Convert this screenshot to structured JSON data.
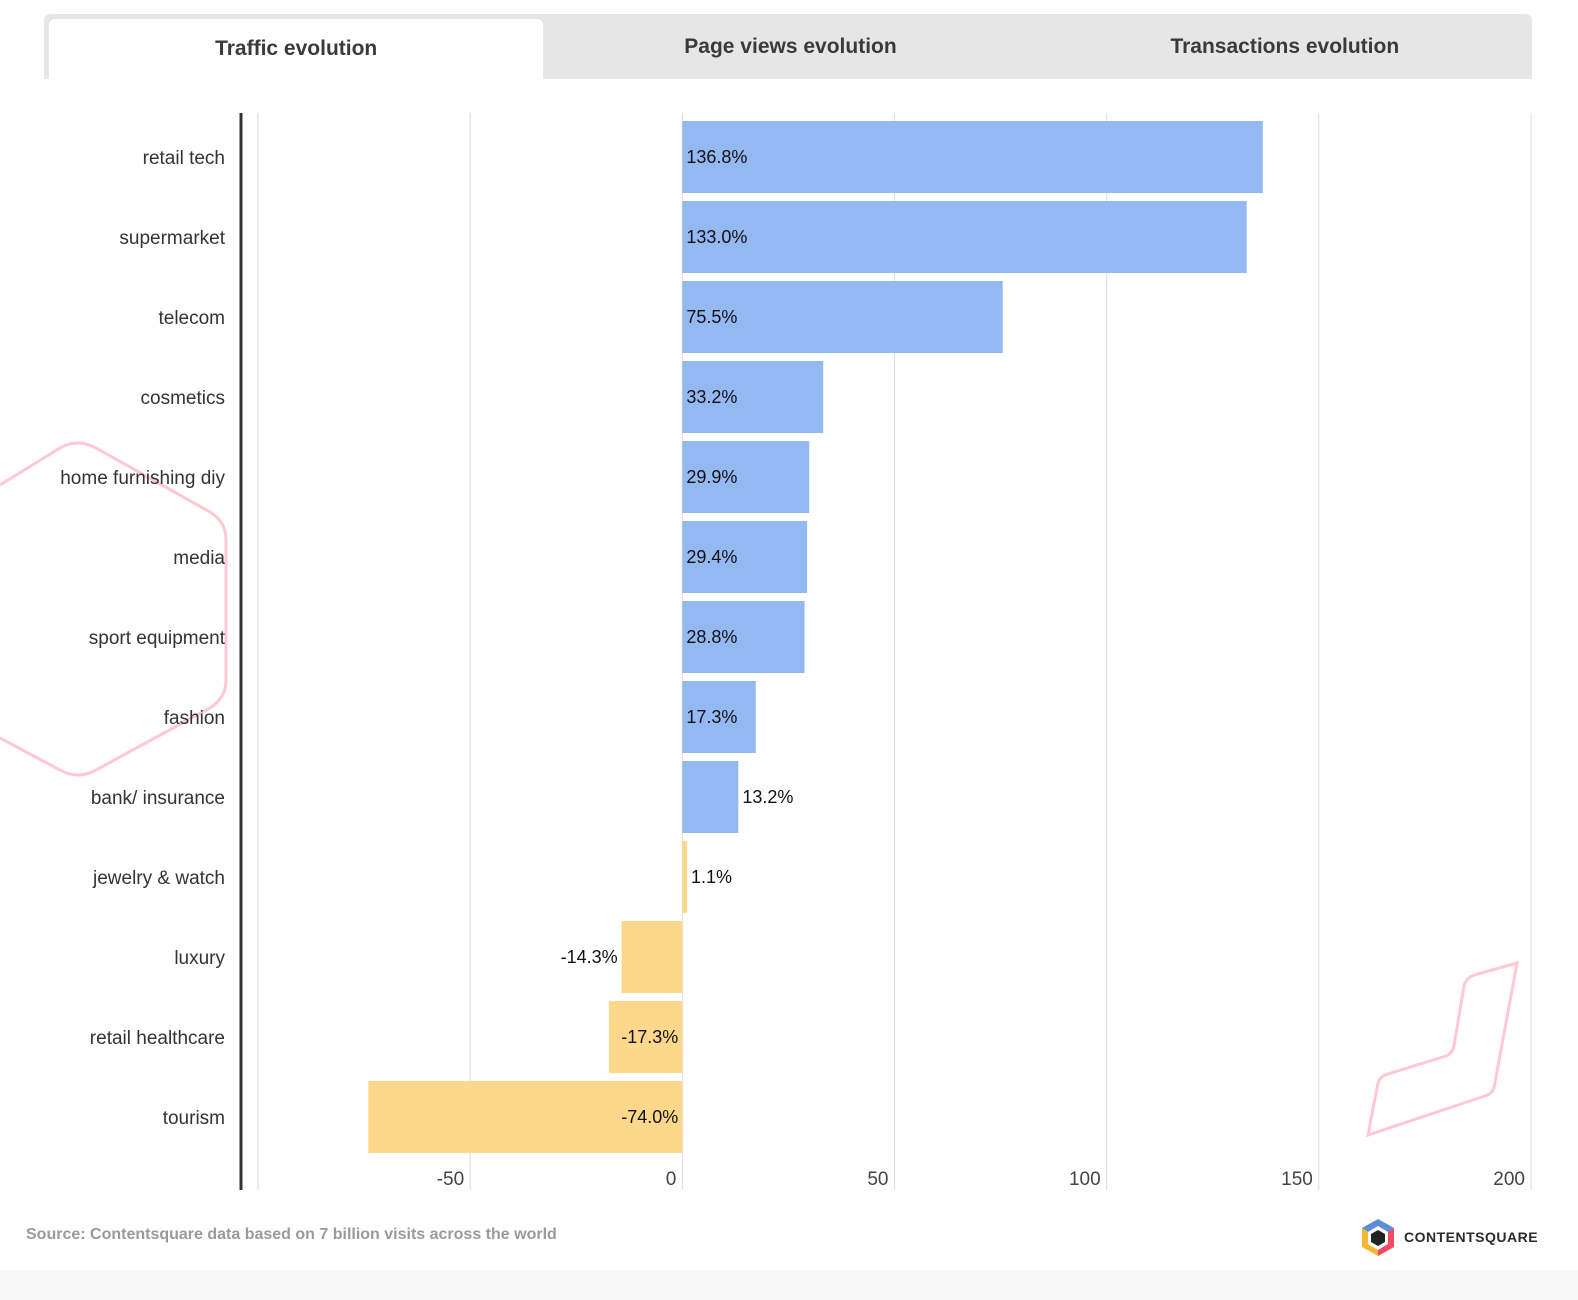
{
  "tabs": [
    {
      "label": "Traffic evolution",
      "active": true
    },
    {
      "label": "Page views evolution",
      "active": false
    },
    {
      "label": "Transactions evolution",
      "active": false
    }
  ],
  "colors": {
    "positive": "#93b8f2",
    "negative": "#fdd78a",
    "decoration": "#ffc8d2"
  },
  "chart_data": {
    "type": "bar",
    "orientation": "horizontal",
    "categories": [
      "retail tech",
      "supermarket",
      "telecom",
      "cosmetics",
      "home furnishing diy",
      "media",
      "sport equipment",
      "fashion",
      "bank/ insurance",
      "jewelry & watch",
      "luxury",
      "retail healthcare",
      "tourism"
    ],
    "values": [
      136.8,
      133.0,
      75.5,
      33.2,
      29.9,
      29.4,
      28.8,
      17.3,
      13.2,
      1.1,
      -14.3,
      -17.3,
      -74.0
    ],
    "bar_colors": [
      "#93b8f2",
      "#93b8f2",
      "#93b8f2",
      "#93b8f2",
      "#93b8f2",
      "#93b8f2",
      "#93b8f2",
      "#93b8f2",
      "#93b8f2",
      "#fdd78a",
      "#fdd78a",
      "#fdd78a",
      "#fdd78a"
    ],
    "data_labels": [
      "136.8%",
      "133.0%",
      "75.5%",
      "33.2%",
      "29.9%",
      "29.4%",
      "28.8%",
      "17.3%",
      "13.2%",
      "1.1%",
      "-14.3%",
      "-17.3%",
      "-74.0%"
    ],
    "xlim": [
      -100,
      200
    ],
    "xticks": [
      -50,
      0,
      50,
      100,
      150,
      200
    ],
    "xtick_labels": [
      "-50",
      "0",
      "50",
      "100",
      "150",
      "200"
    ],
    "grid": true
  },
  "footer": {
    "source": "Source: Contentsquare data based on 7 billion visits across the world",
    "logo_text": "CONTENTSQUARE"
  }
}
